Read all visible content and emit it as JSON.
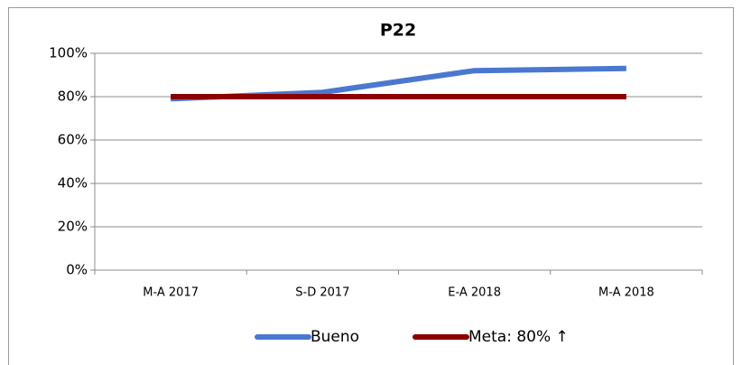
{
  "chart_data": {
    "type": "line",
    "title": "P22",
    "categories": [
      "M-A 2017",
      "S-D 2017",
      "E-A 2018",
      "M-A 2018"
    ],
    "series": [
      {
        "name": "Bueno",
        "color": "#4a78d0",
        "values": [
          79,
          82,
          92,
          93
        ]
      },
      {
        "name": "Meta: 80% ↑",
        "color": "#8b0000",
        "values": [
          80,
          80,
          80,
          80
        ]
      }
    ],
    "ylim": [
      0,
      100
    ],
    "yticks": [
      {
        "value": 0,
        "label": "0%"
      },
      {
        "value": 20,
        "label": "20%"
      },
      {
        "value": 40,
        "label": "40%"
      },
      {
        "value": 60,
        "label": "60%"
      },
      {
        "value": 80,
        "label": "80%"
      },
      {
        "value": 100,
        "label": "100%"
      }
    ],
    "grid": true,
    "legend": "bottom"
  }
}
